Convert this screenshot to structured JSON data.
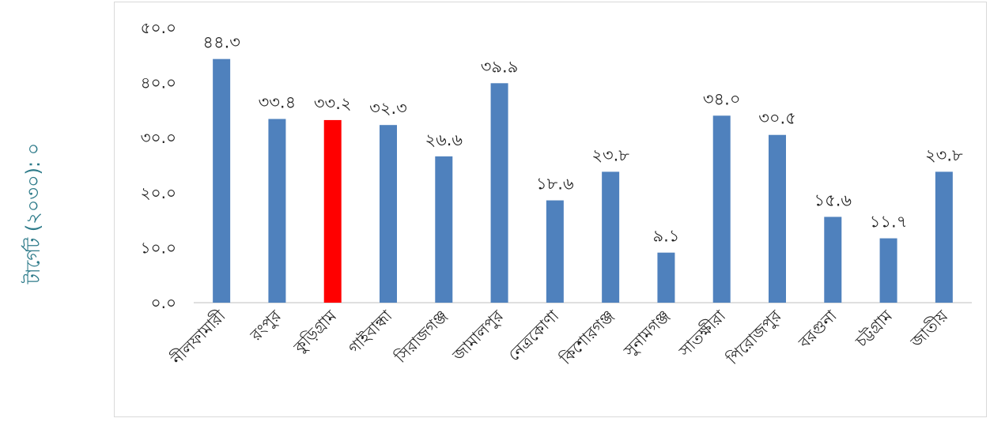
{
  "side_label": "টার্গেট (২০৩০): ০",
  "chart_data": {
    "type": "bar",
    "categories": [
      "নীলফামারী",
      "রংপুর",
      "কুড়িগ্রাম",
      "গাইবান্ধা",
      "সিরাজগঞ্জ",
      "জামালপুর",
      "নেত্রকোণা",
      "কিশোরগঞ্জ",
      "সুনামগঞ্জ",
      "সাতক্ষীরা",
      "পিরোজপুর",
      "বরগুনা",
      "চট্টগ্রাম",
      "জাতীয়"
    ],
    "values": [
      44.3,
      33.4,
      33.2,
      32.3,
      26.6,
      39.9,
      18.6,
      23.8,
      9.1,
      34.0,
      30.5,
      15.6,
      11.7,
      23.8
    ],
    "value_labels": [
      "৪৪.৩",
      "৩৩.৪",
      "৩৩.২",
      "৩২.৩",
      "২৬.৬",
      "৩৯.৯",
      "১৮.৬",
      "২৩.৮",
      "৯.১",
      "৩৪.০",
      "৩০.৫",
      "১৫.৬",
      "১১.৭",
      "২৩.৮"
    ],
    "y_tick_labels": [
      "০.০",
      "১০.০",
      "২০.০",
      "৩০.০",
      "৪০.০",
      "৫০.০"
    ],
    "y_ticks": [
      0,
      10,
      20,
      30,
      40,
      50
    ],
    "ylim": [
      0,
      50
    ],
    "grid": false,
    "legend": "none",
    "colors": {
      "default": "#4f81bd",
      "highlight": "#ff0000"
    },
    "highlight_index": 2
  }
}
